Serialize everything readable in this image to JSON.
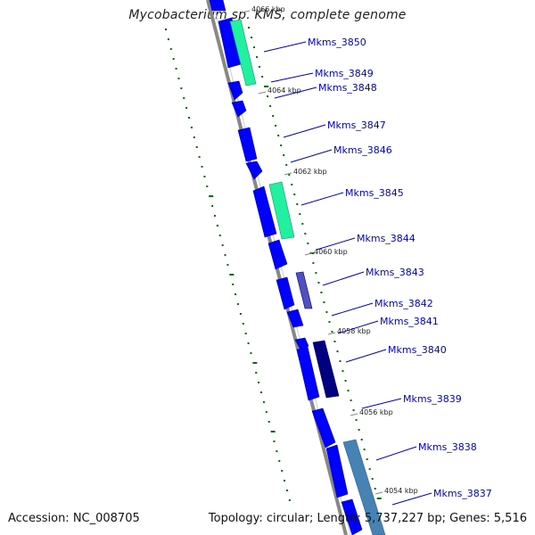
{
  "title": "Mycobacterium sp. KMS, complete genome",
  "accession_text": "Accession: NC_008705",
  "topology_text": "Topology: circular; Length: 5,737,227 bp; Genes: 5,516",
  "colors": {
    "backbone": "#888888",
    "gene_blue": "#0000ff",
    "label_blue": "#0000cc",
    "gc_green": "#007700",
    "teal": "#20f0a0",
    "navy": "#000080",
    "steel": "#4682b4"
  },
  "ticks": [
    "4066 kbp",
    "4064 kbp",
    "4062 kbp",
    "4060 kbp",
    "4058 kbp",
    "4056 kbp",
    "4054 kbp"
  ],
  "gene_labels": [
    "Mkms_3850",
    "Mkms_3849",
    "Mkms_3848",
    "Mkms_3847",
    "Mkms_3846",
    "Mkms_3845",
    "Mkms_3844",
    "Mkms_3843",
    "Mkms_3842",
    "Mkms_3841",
    "Mkms_3840",
    "Mkms_3839",
    "Mkms_3838",
    "Mkms_3837"
  ]
}
